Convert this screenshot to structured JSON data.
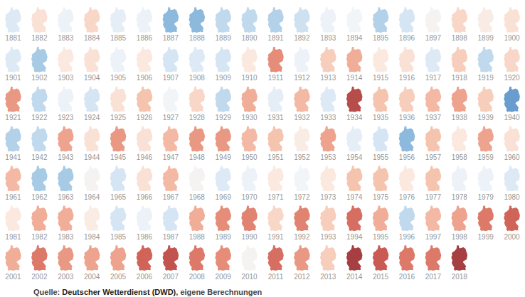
{
  "chart_data": {
    "type": "small_multiple_map",
    "categories": [
      "1881",
      "1882",
      "1883",
      "1884",
      "1885",
      "1886",
      "1887",
      "1888",
      "1889",
      "1890",
      "1891",
      "1892",
      "1893",
      "1894",
      "1895",
      "1896",
      "1897",
      "1898",
      "1899",
      "1900",
      "1901",
      "1902",
      "1903",
      "1904",
      "1905",
      "1906",
      "1907",
      "1908",
      "1909",
      "1910",
      "1911",
      "1912",
      "1913",
      "1914",
      "1915",
      "1916",
      "1917",
      "1918",
      "1919",
      "1920",
      "1921",
      "1922",
      "1923",
      "1924",
      "1925",
      "1926",
      "1927",
      "1928",
      "1929",
      "1930",
      "1931",
      "1932",
      "1933",
      "1934",
      "1935",
      "1936",
      "1937",
      "1938",
      "1939",
      "1940",
      "1941",
      "1942",
      "1943",
      "1944",
      "1945",
      "1946",
      "1947",
      "1948",
      "1949",
      "1950",
      "1951",
      "1952",
      "1953",
      "1954",
      "1955",
      "1956",
      "1957",
      "1958",
      "1959",
      "1960",
      "1961",
      "1962",
      "1963",
      "1964",
      "1965",
      "1966",
      "1967",
      "1968",
      "1969",
      "1970",
      "1971",
      "1972",
      "1973",
      "1974",
      "1975",
      "1976",
      "1977",
      "1978",
      "1979",
      "1980",
      "1981",
      "1982",
      "1983",
      "1984",
      "1985",
      "1986",
      "1987",
      "1988",
      "1989",
      "1990",
      "1991",
      "1992",
      "1993",
      "1994",
      "1995",
      "1996",
      "1997",
      "1998",
      "1999",
      "2000",
      "2001",
      "2002",
      "2003",
      "2004",
      "2005",
      "2006",
      "2007",
      "2008",
      "2009",
      "2010",
      "2011",
      "2012",
      "2013",
      "2014",
      "2015",
      "2016",
      "2017",
      "2018"
    ],
    "values": [
      -0.5,
      0.3,
      -0.3,
      0.4,
      -0.4,
      -0.3,
      -1.2,
      -1.2,
      -0.8,
      -0.8,
      -0.9,
      -0.7,
      -0.3,
      -0.2,
      -0.9,
      -0.6,
      -0.1,
      0.4,
      0.1,
      0.3,
      -0.5,
      -1.0,
      0.2,
      0.3,
      -0.3,
      0.2,
      -0.6,
      -0.5,
      -0.6,
      0.2,
      1.1,
      -0.3,
      0.5,
      0.8,
      0.2,
      0.3,
      -0.5,
      0.5,
      -0.8,
      0.4,
      1.0,
      -0.8,
      -0.3,
      -0.6,
      0.3,
      0.6,
      -0.2,
      0.4,
      -0.8,
      0.8,
      -0.4,
      0.7,
      -0.5,
      1.8,
      0.6,
      0.5,
      0.7,
      0.9,
      0.5,
      -1.5,
      -0.9,
      -0.8,
      0.9,
      0.3,
      1.0,
      0.3,
      0.7,
      1.0,
      1.0,
      0.7,
      0.6,
      0.1,
      0.9,
      -0.4,
      -0.6,
      -1.2,
      0.6,
      0.2,
      0.9,
      0.3,
      0.7,
      -1.0,
      -1.0,
      -0.1,
      -0.6,
      0.3,
      0.7,
      -0.1,
      -0.5,
      -0.3,
      0.2,
      -0.2,
      0.2,
      0.6,
      0.6,
      0.2,
      0.6,
      -0.3,
      -0.3,
      -0.5,
      0.2,
      0.8,
      0.8,
      0.1,
      -0.6,
      -0.3,
      -0.6,
      0.8,
      1.1,
      1.2,
      0.4,
      1.2,
      0.5,
      1.4,
      0.8,
      -0.8,
      0.7,
      0.9,
      1.3,
      1.5,
      0.8,
      1.3,
      1.0,
      0.9,
      0.9,
      1.5,
      1.7,
      1.3,
      1.1,
      -0.1,
      1.4,
      1.0,
      0.5,
      2.0,
      1.6,
      1.3,
      1.3,
      2.1
    ],
    "color_range": [
      -2,
      2
    ],
    "source": {
      "label": "Quelle:",
      "name": "Deutscher Wetterdienst (DWD)",
      "note": ", eigene Berechnungen"
    }
  }
}
